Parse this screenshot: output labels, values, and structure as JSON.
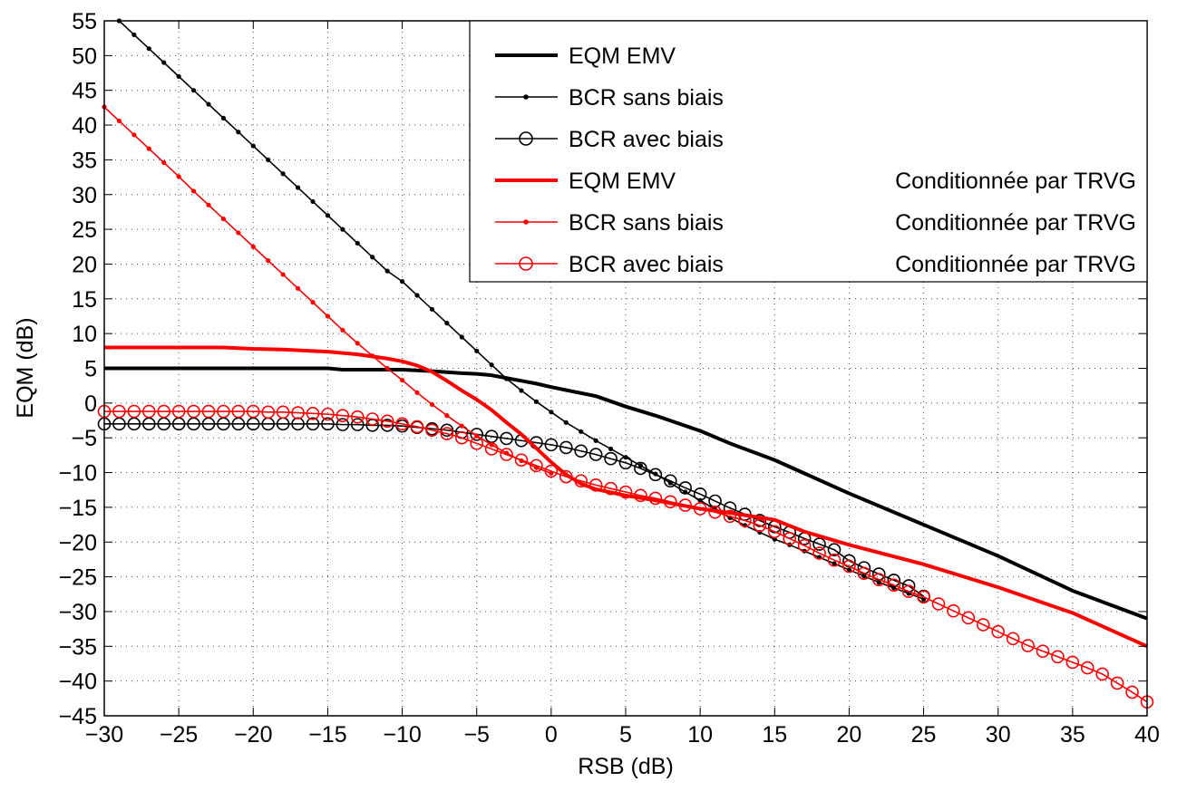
{
  "chart_data": {
    "type": "line",
    "xlabel": "RSB (dB)",
    "ylabel": "EQM (dB)",
    "xlim": [
      -30,
      40
    ],
    "ylim": [
      -45,
      55
    ],
    "xticks": [
      -30,
      -25,
      -20,
      -15,
      -10,
      -5,
      0,
      5,
      10,
      15,
      20,
      25,
      30,
      35,
      40
    ],
    "yticks": [
      -45,
      -40,
      -35,
      -30,
      -25,
      -20,
      -15,
      -10,
      -5,
      0,
      5,
      10,
      15,
      20,
      25,
      30,
      35,
      40,
      45,
      50,
      55
    ],
    "grid": true,
    "legend_position": "top-right",
    "series": [
      {
        "name": "EQM EMV",
        "condition": "",
        "color": "#000000",
        "style": "thick",
        "x": [
          -30,
          -25,
          -20,
          -15,
          -14,
          -10,
          -8,
          -6,
          -5,
          -4,
          -3,
          -2,
          -1,
          0,
          3,
          5,
          7,
          10,
          12,
          15,
          20,
          25,
          30,
          35,
          40
        ],
        "y": [
          5,
          5,
          5,
          5,
          4.8,
          4.8,
          4.6,
          4.3,
          4.2,
          4,
          3.6,
          3.2,
          2.8,
          2.3,
          1,
          -0.5,
          -1.8,
          -4,
          -5.8,
          -8.2,
          -13,
          -17.5,
          -22,
          -27,
          -31
        ]
      },
      {
        "name": "BCR sans biais",
        "condition": "",
        "color": "#000000",
        "style": "dot",
        "x": [
          -29,
          -28,
          -27,
          -26,
          -25,
          -24,
          -23,
          -22,
          -21,
          -20,
          -19,
          -18,
          -17,
          -16,
          -15,
          -14,
          -13,
          -12,
          -11,
          -10,
          -9,
          -8,
          -7,
          -6,
          -5,
          -4,
          -3,
          -2,
          -1,
          0,
          1,
          2,
          3,
          4,
          5,
          6,
          7,
          8,
          9,
          10,
          11,
          12,
          13,
          14,
          15,
          16,
          17,
          18,
          19,
          20,
          21,
          22,
          23,
          24,
          25
        ],
        "y": [
          55,
          53,
          51,
          49,
          47,
          45,
          43,
          41,
          39,
          37,
          35,
          33,
          31,
          29,
          27,
          25,
          23,
          21,
          19,
          17.5,
          15.5,
          13.5,
          11.5,
          9.5,
          7.5,
          5.5,
          3.5,
          1.8,
          0.2,
          -1.3,
          -2.8,
          -4.1,
          -5.4,
          -6.6,
          -7.8,
          -9,
          -10.2,
          -11.5,
          -12.8,
          -14,
          -15.3,
          -16.5,
          -17.6,
          -18.6,
          -19.6,
          -20.4,
          -21.3,
          -22.2,
          -23.1,
          -24,
          -24.9,
          -25.8,
          -26.6,
          -27.4,
          -28.2
        ]
      },
      {
        "name": "BCR avec biais",
        "condition": "",
        "color": "#000000",
        "style": "circle",
        "x": [
          -30,
          -29,
          -28,
          -27,
          -26,
          -25,
          -24,
          -23,
          -22,
          -21,
          -20,
          -19,
          -18,
          -17,
          -16,
          -15,
          -14,
          -13,
          -12,
          -11,
          -10,
          -9,
          -8,
          -7,
          -6,
          -5,
          -4,
          -3,
          -2,
          -1,
          0,
          1,
          2,
          3,
          4,
          5,
          6,
          7,
          8,
          9,
          10,
          11,
          12,
          13,
          14,
          15,
          16,
          17,
          18,
          19,
          20,
          21,
          22,
          23,
          24,
          25
        ],
        "y": [
          -3,
          -3,
          -3,
          -3,
          -3,
          -3,
          -3,
          -3,
          -3,
          -3,
          -3,
          -3,
          -3,
          -3,
          -3,
          -3,
          -3.1,
          -3.1,
          -3.2,
          -3.2,
          -3.3,
          -3.5,
          -3.7,
          -3.9,
          -4.2,
          -4.5,
          -4.8,
          -5.1,
          -5.4,
          -5.7,
          -6,
          -6.4,
          -6.9,
          -7.4,
          -8,
          -8.6,
          -9.4,
          -10.3,
          -11.2,
          -12.2,
          -13.1,
          -14.1,
          -15.1,
          -16,
          -16.9,
          -17.8,
          -18.6,
          -19.5,
          -20.3,
          -21.1,
          -22.7,
          -23.7,
          -24.6,
          -25.5,
          -26.3,
          -27.8
        ]
      },
      {
        "name": "EQM EMV",
        "condition": "Conditionnée par TRVG",
        "color": "#ff0000",
        "style": "thick",
        "x": [
          -30,
          -25,
          -22,
          -20,
          -18,
          -16,
          -15,
          -13,
          -11,
          -10,
          -9,
          -8,
          -7,
          -6,
          -5,
          -4,
          -3,
          -2,
          -1,
          0,
          1,
          2,
          3,
          5,
          7,
          10,
          12,
          15,
          17,
          20,
          25,
          30,
          35,
          40
        ],
        "y": [
          8,
          8,
          8,
          7.8,
          7.7,
          7.5,
          7.4,
          7,
          6.4,
          6,
          5.4,
          4.5,
          3.2,
          1.8,
          0.5,
          -1,
          -2.8,
          -4.5,
          -6.5,
          -8.5,
          -10.3,
          -11.6,
          -12.4,
          -13.3,
          -14,
          -15.2,
          -15.8,
          -16.8,
          -18.5,
          -20.4,
          -23.2,
          -26.5,
          -30.2,
          -35
        ]
      },
      {
        "name": "BCR sans biais",
        "condition": "Conditionnée par TRVG",
        "color": "#ff0000",
        "style": "dot",
        "x": [
          -30,
          -29,
          -28,
          -27,
          -26,
          -25,
          -24,
          -23,
          -22,
          -21,
          -20,
          -19,
          -18,
          -17,
          -16,
          -15,
          -14,
          -13,
          -12,
          -11,
          -10,
          -9,
          -8,
          -7,
          -6,
          -5,
          -4,
          -3,
          -2,
          -1,
          0
        ],
        "y": [
          42.6,
          40.6,
          38.6,
          36.6,
          34.6,
          32.6,
          30.5,
          28.5,
          26.5,
          24.5,
          22.5,
          20.5,
          18.5,
          16.5,
          14.5,
          12.5,
          10.5,
          8.6,
          6.8,
          5,
          3.3,
          1.5,
          -0.2,
          -1.8,
          -3.3,
          -4.7,
          -6,
          -7.2,
          -8.3,
          -9.3,
          -10.1
        ]
      },
      {
        "name": "BCR avec biais",
        "condition": "Conditionnée par TRVG",
        "color": "#ff0000",
        "style": "circle",
        "x": [
          -30,
          -29,
          -28,
          -27,
          -26,
          -25,
          -24,
          -23,
          -22,
          -21,
          -20,
          -19,
          -18,
          -17,
          -16,
          -15,
          -14,
          -13,
          -12,
          -11,
          -10,
          -9,
          -8,
          -7,
          -6,
          -5,
          -4,
          -3,
          -2,
          -1,
          0,
          1,
          2,
          3,
          4,
          5,
          6,
          7,
          8,
          9,
          10,
          11,
          12,
          13,
          14,
          15,
          16,
          17,
          18,
          19,
          20,
          21,
          22,
          23,
          24,
          25,
          26,
          27,
          28,
          29,
          30,
          31,
          32,
          33,
          34,
          35,
          36,
          37,
          38,
          39,
          40
        ],
        "y": [
          -1.2,
          -1.2,
          -1.2,
          -1.2,
          -1.2,
          -1.2,
          -1.2,
          -1.2,
          -1.2,
          -1.2,
          -1.2,
          -1.3,
          -1.3,
          -1.4,
          -1.5,
          -1.6,
          -1.8,
          -2,
          -2.3,
          -2.6,
          -3,
          -3.4,
          -3.9,
          -4.4,
          -5,
          -5.8,
          -6.6,
          -7.4,
          -8.2,
          -9,
          -9.8,
          -10.6,
          -11.2,
          -11.8,
          -12.3,
          -12.8,
          -13.3,
          -13.7,
          -14.2,
          -14.7,
          -15.2,
          -15.7,
          -16.3,
          -16.9,
          -17.6,
          -18.5,
          -19.5,
          -20.5,
          -21.6,
          -22.6,
          -23.5,
          -24.5,
          -25.4,
          -26.2,
          -27.1,
          -27.9,
          -28.9,
          -29.9,
          -30.9,
          -31.9,
          -32.9,
          -33.9,
          -34.9,
          -35.7,
          -36.5,
          -37.3,
          -38.1,
          -39,
          -40.3,
          -41.6,
          -43
        ]
      }
    ]
  }
}
